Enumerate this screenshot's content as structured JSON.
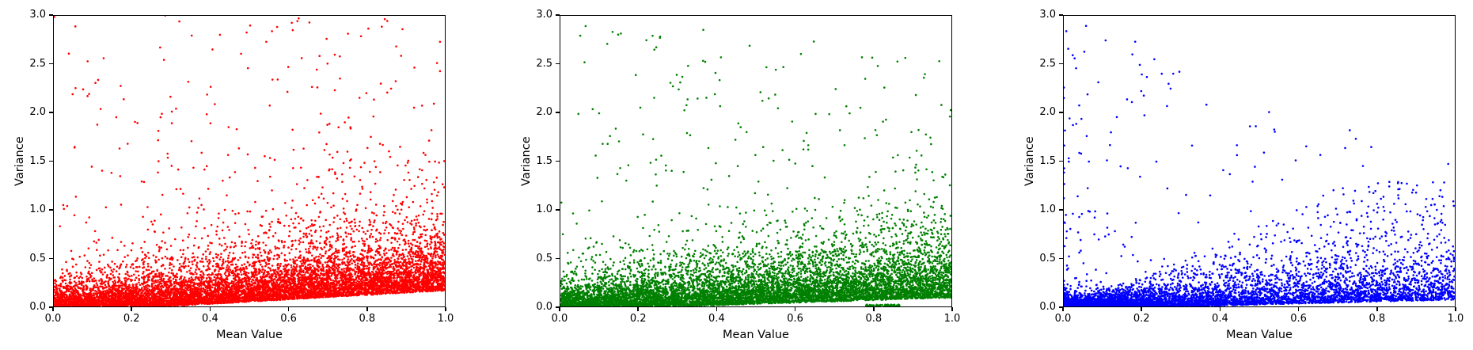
{
  "figure": {
    "background": "#ffffff",
    "title": "",
    "n_subplots": 3
  },
  "chart_data": [
    {
      "type": "scatter",
      "series_name": "red-series",
      "color": "#ff0000",
      "xlabel": "Mean Value",
      "ylabel": "Variance",
      "xlim": [
        0.0,
        1.0
      ],
      "ylim": [
        0.0,
        3.0
      ],
      "xticks": [
        0.0,
        0.2,
        0.4,
        0.6,
        0.8,
        1.0
      ],
      "yticks": [
        0.0,
        0.5,
        1.0,
        1.5,
        2.0,
        2.5,
        3.0
      ],
      "xtick_labels": [
        "0.0",
        "0.2",
        "0.4",
        "0.6",
        "0.8",
        "1.0"
      ],
      "ytick_labels": [
        "0.0",
        "0.5",
        "1.0",
        "1.5",
        "2.0",
        "2.5",
        "3.0"
      ],
      "grid": false,
      "legend": null,
      "marker_diameter_px": 2.6,
      "n_points": 9000,
      "distribution_note": "Dense low-variance band across all means; empty wedge below line rising from (0.29,0) to (1.0,~0.23); sparse heavy tail of outliers up to 3.0 across full x range, some clipped at y=3.0",
      "generator": {
        "seed": 7,
        "x_pow": 0.9,
        "x_uniform_frac": 0,
        "lb_x0": 0.285,
        "lb_slope": 0.23,
        "bulk_mean_base": 0.1,
        "bulk_mean_slope": 0.15,
        "fan_frac": 0,
        "fan_slope": 0,
        "tail_frac": 0.035,
        "tail_pow": 1.25,
        "tail_base": 1.0,
        "tail_damp": 0.0
      }
    },
    {
      "type": "scatter",
      "series_name": "green-series",
      "color": "#008000",
      "xlabel": "Mean Value",
      "ylabel": "Variance",
      "xlim": [
        0.0,
        1.0
      ],
      "ylim": [
        0.0,
        3.0
      ],
      "xticks": [
        0.0,
        0.2,
        0.4,
        0.6,
        0.8,
        1.0
      ],
      "yticks": [
        0.0,
        0.5,
        1.0,
        1.5,
        2.0,
        2.5,
        3.0
      ],
      "xtick_labels": [
        "0.0",
        "0.2",
        "0.4",
        "0.6",
        "0.8",
        "1.0"
      ],
      "ytick_labels": [
        "0.0",
        "0.5",
        "1.0",
        "1.5",
        "2.0",
        "2.5",
        "3.0"
      ],
      "grid": false,
      "legend": null,
      "marker_diameter_px": 2.6,
      "n_points": 8200,
      "distribution_note": "Similar fan to red but tighter low band at high means; shallow empty wedge below line from (0.30,0) to (1.0,~0.09); small stripe of points at variance~0 near mean 0.78-0.87; outliers up to 3.0",
      "generator": {
        "seed": 11,
        "x_pow": 0.95,
        "x_uniform_frac": 0,
        "lb_x0": 0.3,
        "lb_slope": 0.13,
        "bulk_mean_base": 0.105,
        "bulk_mean_slope": 0.14,
        "fan_frac": 0,
        "fan_slope": 0,
        "tail_frac": 0.034,
        "tail_pow": 1.3,
        "tail_base": 1.0,
        "tail_damp": 0.15,
        "zero_cluster": {
          "n": 60,
          "x_min": 0.78,
          "x_max": 0.87,
          "v_min": 0.0,
          "v_max": 0.02
        }
      }
    },
    {
      "type": "scatter",
      "series_name": "blue-series",
      "color": "#0000ff",
      "xlabel": "Mean Value",
      "ylabel": "Variance",
      "xlim": [
        0.0,
        1.0
      ],
      "ylim": [
        0.0,
        3.0
      ],
      "xticks": [
        0.0,
        0.2,
        0.4,
        0.6,
        0.8,
        1.0
      ],
      "yticks": [
        0.0,
        0.5,
        1.0,
        1.5,
        2.0,
        2.5,
        3.0
      ],
      "xtick_labels": [
        "0.0",
        "0.2",
        "0.4",
        "0.6",
        "0.8",
        "1.0"
      ],
      "ytick_labels": [
        "0.0",
        "0.5",
        "1.0",
        "1.5",
        "2.0",
        "2.5",
        "3.0"
      ],
      "grid": false,
      "legend": null,
      "marker_diameter_px": 2.6,
      "n_points": 7200,
      "distribution_note": "Points concentrated at low means forming dense fan up to ~1.7x for mean<0.5; sparse beyond mean 0.65 hugging low variance; high outliers (>2) mostly at mean<0.35; thin dense line at variance~0.02 for mean 0.1-0.65",
      "generator": {
        "seed": 23,
        "x_pow": 2.4,
        "x_uniform_frac": 0.22,
        "lb_x0": 0.3,
        "lb_slope": 0.1,
        "bulk_mean_base": 0.035,
        "bulk_mean_slope": 0.1,
        "fan_frac": 0.4,
        "fan_slope": 1.75,
        "tail_frac": 0.03,
        "tail_pow": 1.3,
        "tail_base": 1.0,
        "tail_damp": 0.55
      }
    }
  ]
}
